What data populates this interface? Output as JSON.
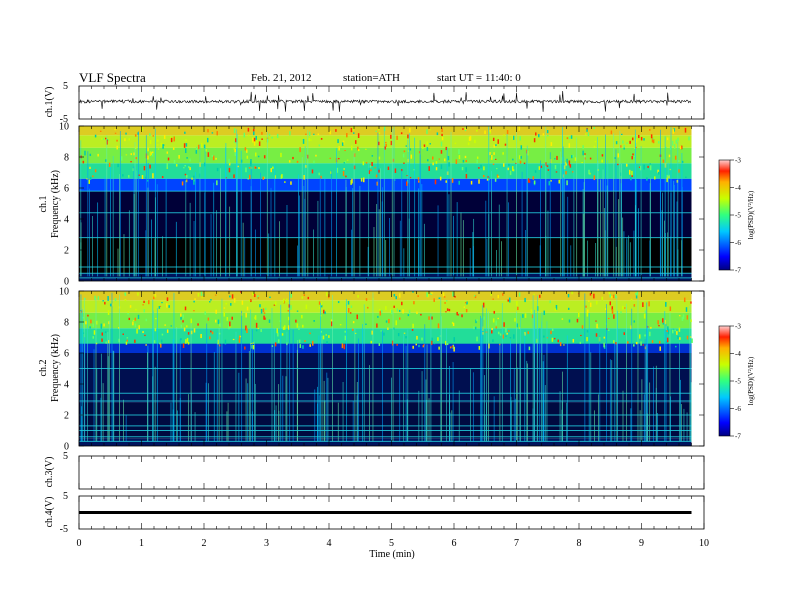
{
  "header": {
    "title": "VLF  Spectra",
    "date": "Feb. 21, 2012",
    "station": "station=ATH",
    "start": "start  UT  =    11:40: 0"
  },
  "chart_data": [
    {
      "type": "line",
      "panel": "ch1-waveform",
      "ylabel": "ch.1(V)",
      "yticks": [
        "5",
        "-5"
      ],
      "ylim": [
        -5,
        5
      ],
      "xlim": [
        0,
        10
      ],
      "data_xmax": 9.8
    },
    {
      "type": "heatmap",
      "panel": "ch1-spectrogram",
      "ylabel_top": "ch.1",
      "ylabel": "Frequency  (kHz)",
      "yticks": [
        "0",
        "2",
        "4",
        "6",
        "8",
        "10"
      ],
      "ylim": [
        0,
        10
      ],
      "xlim": [
        0,
        10
      ],
      "data_xmax": 9.8,
      "colorbar": {
        "label": "log(PSD)(V²/Hz)",
        "ticks": [
          "-3",
          "-4",
          "-5",
          "-6",
          "-7"
        ],
        "range": [
          -7,
          -3
        ]
      }
    },
    {
      "type": "heatmap",
      "panel": "ch2-spectrogram",
      "ylabel_top": "ch.2",
      "ylabel": "Frequency  (kHz)",
      "yticks": [
        "0",
        "2",
        "4",
        "6",
        "8",
        "10"
      ],
      "ylim": [
        0,
        10
      ],
      "xlim": [
        0,
        10
      ],
      "data_xmax": 9.8,
      "colorbar": {
        "label": "log(PSD)(V²/Hz)",
        "ticks": [
          "-3",
          "-4",
          "-5",
          "-6",
          "-7"
        ],
        "range": [
          -7,
          -3
        ]
      }
    },
    {
      "type": "line",
      "panel": "ch3-waveform",
      "ylabel": "ch.3(V)",
      "yticks": [
        "5"
      ],
      "ylim": [
        -5,
        5
      ],
      "xlim": [
        0,
        10
      ]
    },
    {
      "type": "line",
      "panel": "ch4-waveform",
      "ylabel": "ch.4(V)",
      "yticks": [
        "5",
        "-5"
      ],
      "ylim": [
        -5,
        5
      ],
      "xlim": [
        0,
        10
      ],
      "data_xmax": 9.8
    }
  ],
  "xaxis": {
    "label": "Time  (min)",
    "ticks": [
      "0",
      "1",
      "2",
      "3",
      "4",
      "5",
      "6",
      "7",
      "8",
      "9",
      "10"
    ]
  }
}
